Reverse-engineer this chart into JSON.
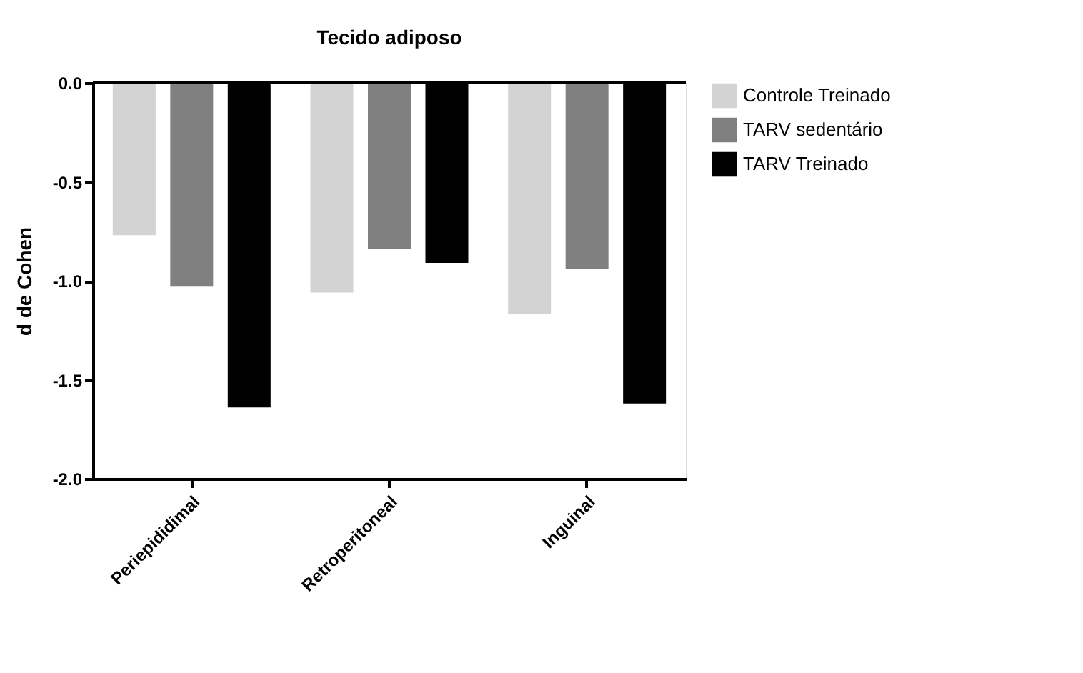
{
  "chart_data": {
    "type": "bar",
    "title": "Tecido adiposo",
    "ylabel": "d de Cohen",
    "categories": [
      "Periepididimal",
      "Retroperitoneal",
      "Inguinal"
    ],
    "series": [
      {
        "name": "Controle Treinado",
        "color": "#d3d3d3",
        "values": [
          -0.77,
          -1.06,
          -1.17
        ]
      },
      {
        "name": "TARV sedentário",
        "color": "#808080",
        "values": [
          -1.03,
          -0.84,
          -0.94
        ]
      },
      {
        "name": "TARV Treinado",
        "color": "#000000",
        "values": [
          -1.64,
          -0.91,
          -1.62
        ]
      }
    ],
    "ylim": [
      -2,
      0
    ],
    "yticks": [
      {
        "value": -2,
        "label": "-2.0"
      },
      {
        "value": -1.5,
        "label": "-1.5"
      },
      {
        "value": -1,
        "label": "-1.0"
      },
      {
        "value": -0.5,
        "label": "-0.5"
      },
      {
        "value": 0,
        "label": "0.0"
      }
    ],
    "ref_lines": [
      {
        "axis": "y",
        "value": 0,
        "label": null
      }
    ],
    "grid": false,
    "legend": "top right"
  }
}
